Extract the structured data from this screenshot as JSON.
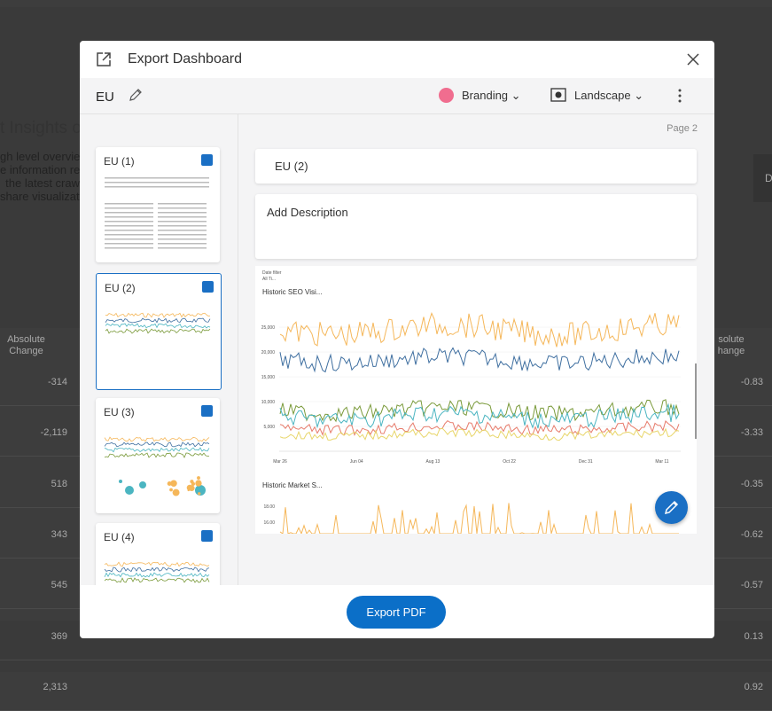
{
  "background": {
    "heading": "t Insights o",
    "lines": [
      "gh level overvie",
      "e information re",
      "the latest craw",
      "share visualizati"
    ],
    "side_button": "D",
    "left_column": {
      "header": "Absolute Change",
      "values": [
        "-314",
        "-2,119",
        "518",
        "343",
        "545",
        "369",
        "2,313"
      ]
    },
    "right_column": {
      "header": "solute hange",
      "values": [
        "-0.83",
        "-3.33",
        "-0.35",
        "-0.62",
        "-0.57",
        "0.13",
        "0.92"
      ]
    }
  },
  "dialog": {
    "title": "Export Dashboard",
    "name": "EU",
    "branding": "Branding",
    "orientation": "Landscape",
    "pages": [
      {
        "label": "EU (1)"
      },
      {
        "label": "EU (2)"
      },
      {
        "label": "EU (3)"
      },
      {
        "label": "EU (4)"
      }
    ],
    "page_indicator": "Page 2",
    "page_title": "EU (2)",
    "description_placeholder": "Add Description",
    "preview": {
      "date_filter_label": "Date filter",
      "date_filter_value": "All Ti...",
      "chart1_title": "Historic SEO Visi...",
      "chart1_yticks": [
        "25,000",
        "20,000",
        "15,000",
        "10,000",
        "5,000"
      ],
      "chart1_xticks": [
        "Mar 26",
        "Jun 04",
        "Aug 13",
        "Oct 22",
        "Dec 31",
        "Mar 11"
      ],
      "chart2_title": "Historic Market S...",
      "chart2_yticks": [
        "18.00",
        "16.00"
      ]
    },
    "export_button": "Export PDF"
  }
}
